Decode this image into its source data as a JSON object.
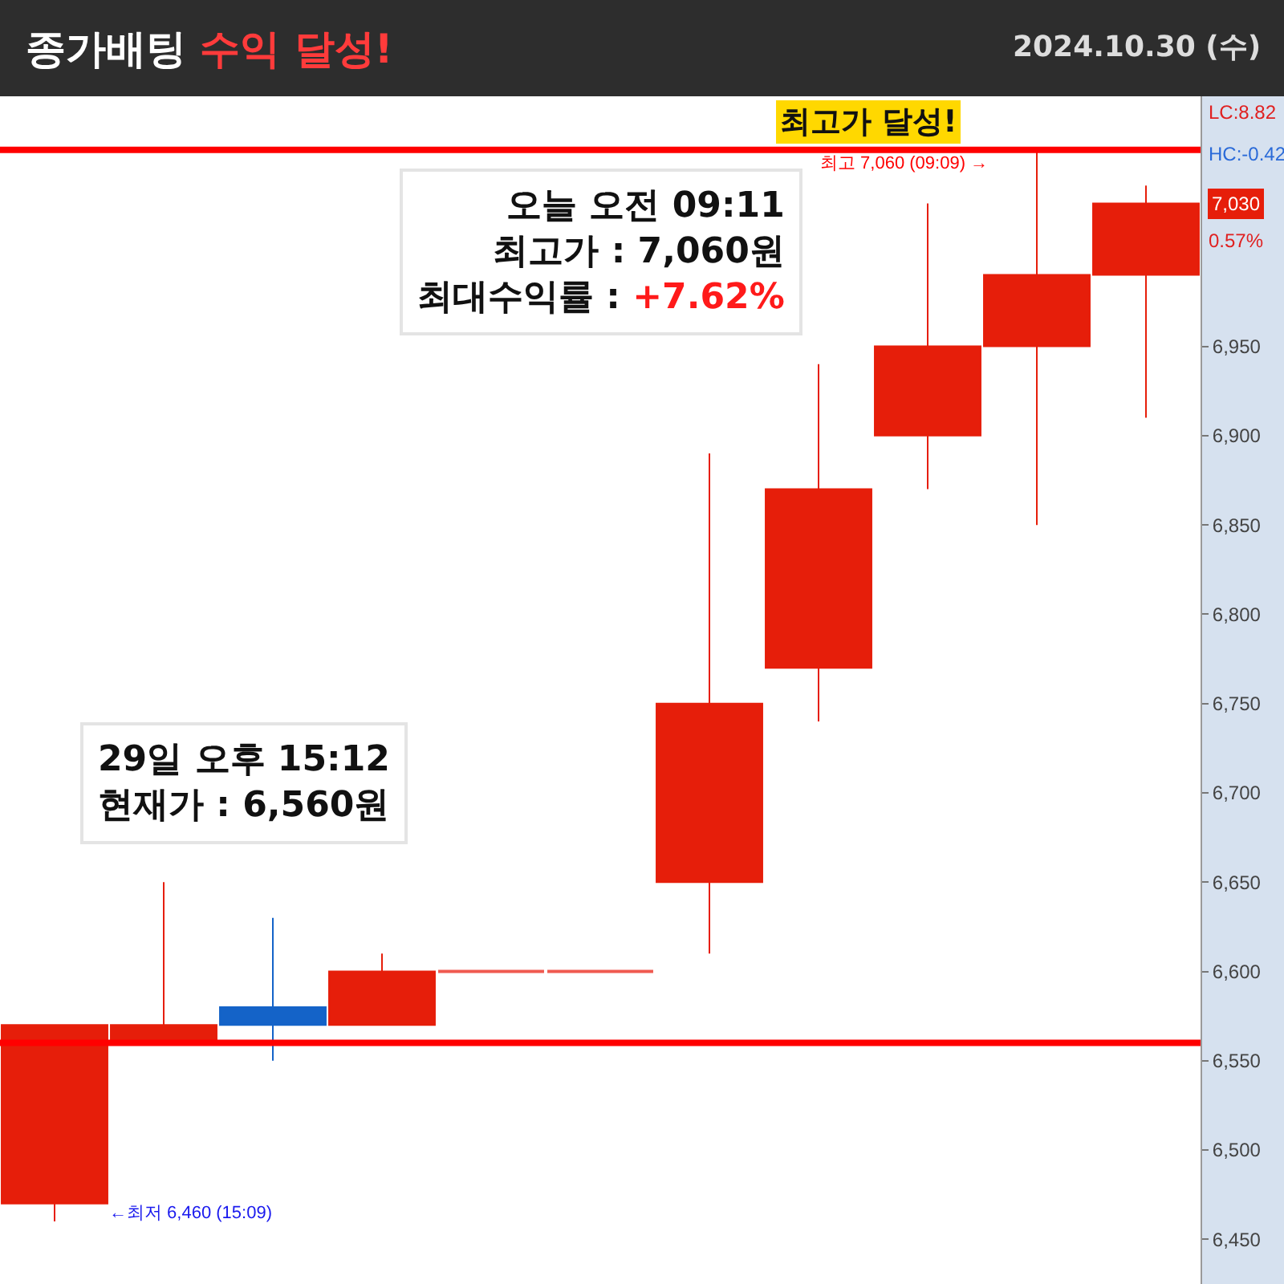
{
  "chart_data": {
    "type": "candlestick",
    "title": "종가배팅 수익 달성!",
    "subtitle": "2024.10.30 (수)",
    "categories": [
      null,
      null,
      null,
      null,
      null,
      null,
      null,
      null,
      null,
      null,
      null
    ],
    "ohlc": [
      [
        6470,
        6570,
        6460,
        6570
      ],
      [
        6560,
        6650,
        6560,
        6570
      ],
      [
        6580,
        6630,
        6550,
        6570
      ],
      [
        6570,
        6610,
        6570,
        6600
      ],
      [
        6600,
        6600,
        6600,
        6600
      ],
      [
        6600,
        6600,
        6600,
        6600
      ],
      [
        6650,
        6890,
        6610,
        6750
      ],
      [
        6770,
        6940,
        6740,
        6870
      ],
      [
        6900,
        7030,
        6870,
        6950
      ],
      [
        6950,
        7060,
        6850,
        6990
      ],
      [
        6990,
        7040,
        6910,
        7030
      ]
    ],
    "colors": [
      "#e61e0a",
      "#e61e0a",
      "#1463c8",
      "#e61e0a",
      "#f05a50",
      "#f05a50",
      "#e61e0a",
      "#e61e0a",
      "#e61e0a",
      "#e61e0a",
      "#e61e0a"
    ],
    "ylim": [
      6425,
      7090
    ],
    "yticks": [
      {
        "value": 6450,
        "label": "6,450"
      },
      {
        "value": 6500,
        "label": "6,500"
      },
      {
        "value": 6550,
        "label": "6,550"
      },
      {
        "value": 6600,
        "label": "6,600"
      },
      {
        "value": 6650,
        "label": "6,650"
      },
      {
        "value": 6700,
        "label": "6,700"
      },
      {
        "value": 6750,
        "label": "6,750"
      },
      {
        "value": 6800,
        "label": "6,800"
      },
      {
        "value": 6850,
        "label": "6,850"
      },
      {
        "value": 6900,
        "label": "6,900"
      },
      {
        "value": 6950,
        "label": "6,950"
      }
    ],
    "tick_labels": "y",
    "ref_lines": [
      {
        "axis": "y",
        "value": 7060,
        "label": "최고 7,060 (09:09) →",
        "color": "#ff0000"
      },
      {
        "axis": "y",
        "value": 6560,
        "color": "#ff0000"
      }
    ],
    "annotations": [
      "오늘 오전 09:11\n최고가 : 7,060원\n최대수익률 : +7.62%",
      "29일 오후 15:12\n현재가 : 6,560원",
      "최고가 달성!",
      "←최저 6,460 (15:09)",
      "LC:8.82",
      "HC:-0.42",
      {
        "text": "7,030",
        "y": 7030
      },
      "0.57%"
    ]
  }
}
